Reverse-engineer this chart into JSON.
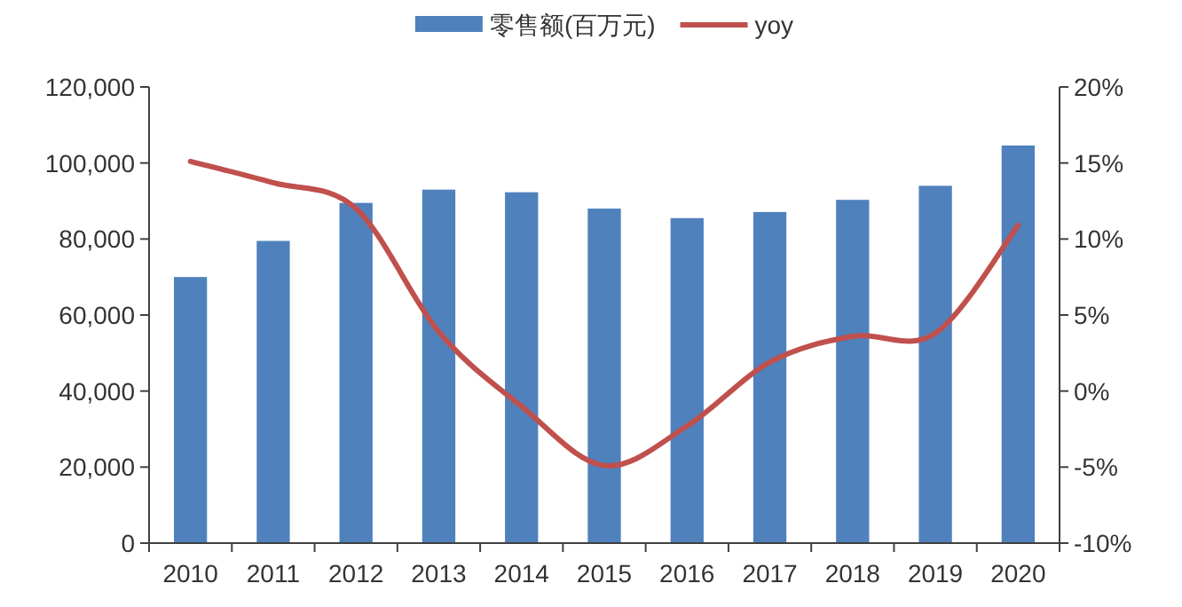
{
  "chart_data": {
    "type": "bar",
    "categories": [
      "2010",
      "2011",
      "2012",
      "2013",
      "2014",
      "2015",
      "2016",
      "2017",
      "2018",
      "2019",
      "2020"
    ],
    "series": [
      {
        "name": "零售额(百万元)",
        "color": "#4f81bd",
        "values": [
          70000,
          79500,
          89500,
          93000,
          92300,
          88000,
          85500,
          87100,
          90300,
          94000,
          104600
        ]
      },
      {
        "name": "yoy",
        "type": "line",
        "axis": "y2",
        "color": "#c0504d",
        "values": [
          15.1,
          13.7,
          12.0,
          3.9,
          -1.0,
          -4.9,
          -2.3,
          1.9,
          3.6,
          3.8,
          10.9
        ]
      }
    ],
    "ylim": [
      0,
      120000
    ],
    "yticks": [
      {
        "value": 0,
        "label": "0"
      },
      {
        "value": 20000,
        "label": "20,000"
      },
      {
        "value": 40000,
        "label": "40,000"
      },
      {
        "value": 60000,
        "label": "60,000"
      },
      {
        "value": 80000,
        "label": "80,000"
      },
      {
        "value": 100000,
        "label": "100,000"
      },
      {
        "value": 120000,
        "label": "120,000"
      }
    ],
    "y2lim": [
      -10,
      20
    ],
    "y2ticks": [
      {
        "value": -10,
        "label": "-10%"
      },
      {
        "value": -5,
        "label": "-5%"
      },
      {
        "value": 0,
        "label": "0%"
      },
      {
        "value": 5,
        "label": "5%"
      },
      {
        "value": 10,
        "label": "10%"
      },
      {
        "value": 15,
        "label": "15%"
      },
      {
        "value": 20,
        "label": "20%"
      }
    ],
    "legend": "top",
    "grid": false
  }
}
